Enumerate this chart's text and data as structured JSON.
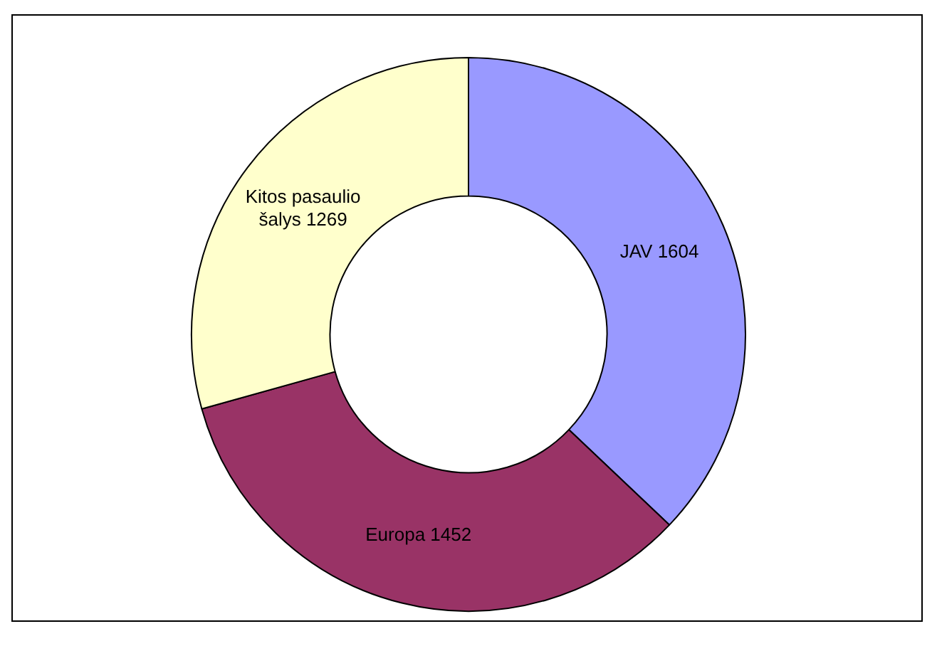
{
  "chart_data": {
    "type": "donut",
    "categories": [
      "JAV",
      "Europa",
      "Kitos pasaulio šalys"
    ],
    "values": [
      1604,
      1452,
      1269
    ],
    "colors": [
      "#9999ff",
      "#993366",
      "#ffffcc"
    ],
    "data_labels": true,
    "legend": false
  }
}
